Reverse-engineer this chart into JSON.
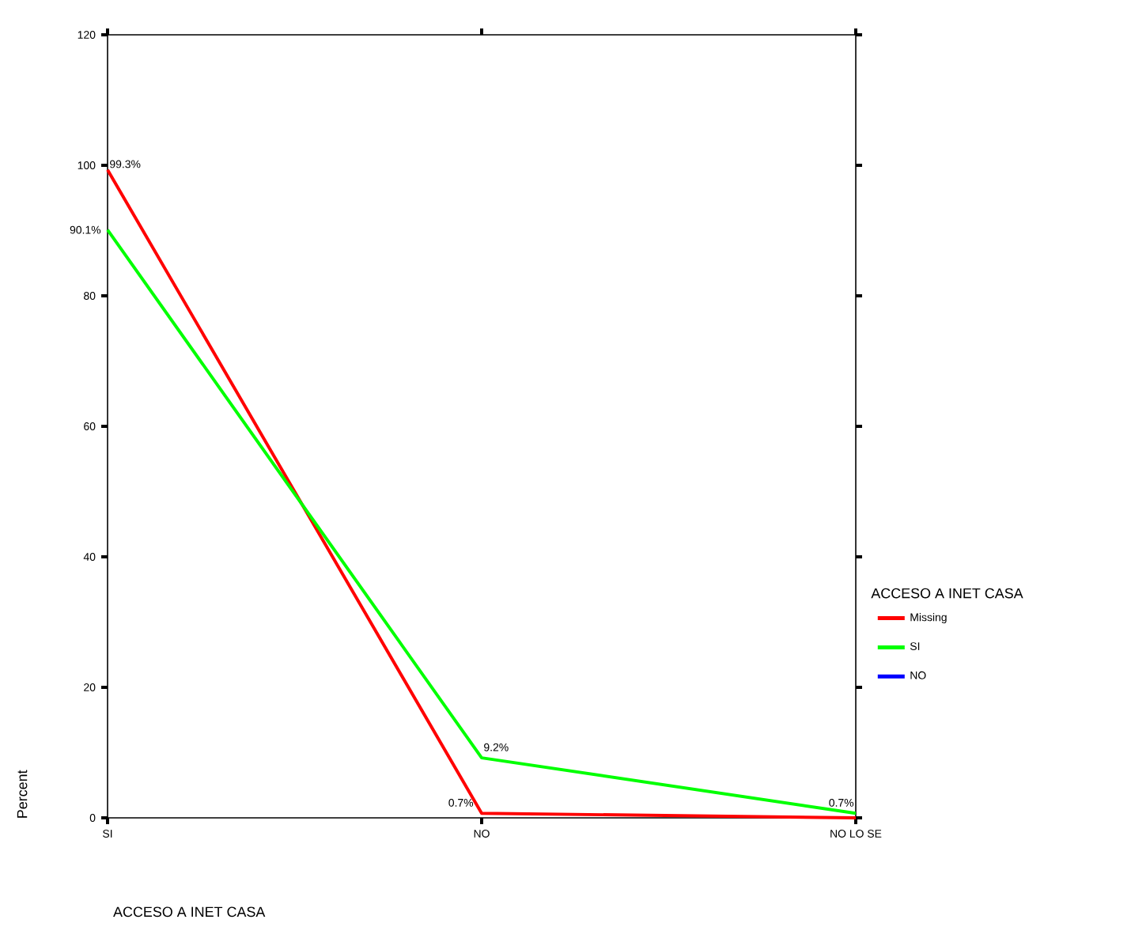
{
  "chart_data": {
    "type": "line",
    "xlabel": "ACCESO A INET CASA",
    "ylabel": "Percent",
    "legend_title": "ACCESO A INET CASA",
    "legend": "right",
    "categories": [
      "SI",
      "NO",
      "NO LO SE"
    ],
    "ylim": [
      0,
      120
    ],
    "yticks": [
      0,
      20,
      40,
      60,
      80,
      100,
      120
    ],
    "series": [
      {
        "name": "Missing",
        "color": "#ff0000",
        "values": [
          99.3,
          0.7,
          0
        ],
        "value_labels": [
          "99.3%",
          "0.7%",
          null
        ]
      },
      {
        "name": "SI",
        "color": "#00ff00",
        "values": [
          90.1,
          9.2,
          0.7
        ],
        "value_labels": [
          "90.1%",
          "9.2%",
          "0.7%"
        ]
      },
      {
        "name": "NO",
        "color": "#0000ff",
        "values": [
          null,
          null,
          null
        ]
      }
    ]
  }
}
